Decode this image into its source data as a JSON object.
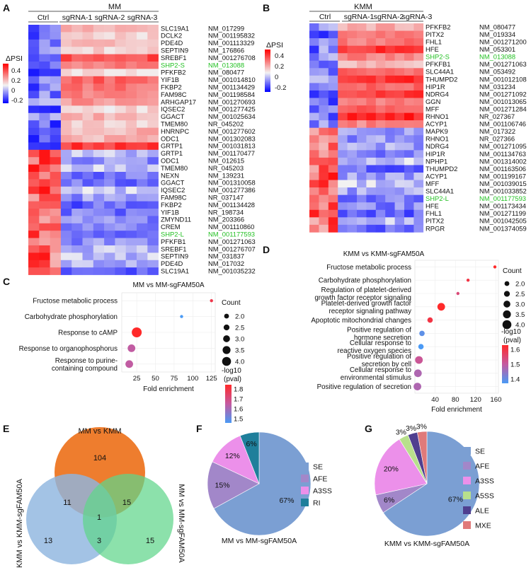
{
  "figure": {
    "panel_letters": [
      "A",
      "B",
      "C",
      "D",
      "E",
      "F",
      "G"
    ],
    "heatmap_scale": {
      "title": "ΔPSI",
      "ticks": [
        "0.4",
        "0.2",
        "0",
        "-0.2"
      ],
      "colors": {
        "low": "#0000ff",
        "mid": "#f2f2f2",
        "high": "#ff0000"
      }
    },
    "heatmap_A": {
      "title": "MM",
      "groups": [
        "Ctrl",
        "sgRNA-1",
        "sgRNA-2",
        "sgRNA-3"
      ],
      "n_cols": 12,
      "genes": [
        "SLC19A1",
        "DCLK2",
        "PDE4D",
        "SEPTIN9",
        "SREBF1",
        "SHP2-S",
        "PFKFB2",
        "YIF1B",
        "FKBP2",
        "FAM98C",
        "ARHGAP17",
        "IQSEC2",
        "GGACT",
        "TMEM80",
        "HNRNPC",
        "ODC1",
        "GRTP1",
        "GRTP1",
        "ODC1",
        "TMEM80",
        "NEXN",
        "GGACT",
        "IQSEC2",
        "FAM98C",
        "FKBP2",
        "YIF1B",
        "ZMYND11",
        "CREM",
        "SHP2-L",
        "PFKFB1",
        "SREBF1",
        "SEPTIN9",
        "PDE4D",
        "SLC19A1"
      ],
      "ids": [
        "NM_017299",
        "NM_001195832",
        "NM_001113329",
        "NM_176866",
        "NM_001276708",
        "NM_013088",
        "NM_080477",
        "NM_001014810",
        "NM_001134429",
        "NM_001198584",
        "NM_001270693",
        "NM_001277425",
        "NM_001025634",
        "NR_045202",
        "NM_001277602",
        "NM_001302083",
        "NM_001031813",
        "NM_001170477",
        "NM_012615",
        "NR_045203",
        "NM_139231",
        "NM_001310058",
        "NM_001277386",
        "NR_037147",
        "NM_001134428",
        "NR_198734",
        "NM_203366",
        "NM_001110860",
        "NM_001177593",
        "NM_001271063",
        "NM_001276707",
        "NM_031837",
        "NM_017032",
        "NM_001035232"
      ],
      "highlight_rows": [
        5,
        28
      ]
    },
    "heatmap_B": {
      "title": "KMM",
      "groups": [
        "Ctrl",
        "sgRNA-1",
        "sgRNA-2",
        "sgRNA-3"
      ],
      "n_cols": 12,
      "genes": [
        "PFKFB2",
        "PITX2",
        "FHL1",
        "HFE",
        "SHP2-S",
        "PFKFB1",
        "SLC44A1",
        "THUMPD2",
        "HIP1R",
        "NDRG4",
        "GGN",
        "MFF",
        "RHNO1",
        "ACYP1",
        "MAPK9",
        "RHNO1",
        "NDRG4",
        "HIP1R",
        "NPHP1",
        "THUMPD2",
        "ACYP1",
        "MFF",
        "SLC44A1",
        "SHP2-L",
        "HFE",
        "FHL1",
        "PITX2",
        "RPGR"
      ],
      "ids": [
        "NM_080477",
        "NM_019334",
        "NM_001271200",
        "NM_053301",
        "NM_013088",
        "NM_001271063",
        "NM_053492",
        "NM_001012108",
        "NM_031234",
        "NM_001271092",
        "NM_001013065",
        "NM_001271284",
        "NR_027367",
        "NM_001106746",
        "NM_017322",
        "NR_027366",
        "NM_001271095",
        "NM_001134763",
        "NM_001314002",
        "NM_001163506",
        "NM_001199167",
        "NM_001039015",
        "NM_001033852",
        "NM_001177593",
        "NM_001173434",
        "NM_001271199",
        "NM_001042505",
        "NM_001374059"
      ],
      "highlight_rows": [
        4,
        23
      ]
    },
    "venn": {
      "sets": [
        "MM vs KMM",
        "KMM vs KMM-sgFAM50A",
        "MM vs MM-sgFAM50A"
      ],
      "colors": {
        "top": "#ee7d2e",
        "left": "#8fb6df",
        "right": "#5fd68b"
      },
      "regions": {
        "top_only": "104",
        "left_only": "13",
        "right_only": "15",
        "top_left": "11",
        "top_right": "15",
        "left_right": "3",
        "all": "1"
      }
    }
  },
  "chart_data": [
    {
      "panel": "C",
      "type": "scatter",
      "title": "MM vs MM-sgFAM50A",
      "xlabel": "Fold enrichment",
      "ylabel": "",
      "xlim": [
        5,
        130
      ],
      "xticks": [
        "25",
        "50",
        "75",
        "100",
        "125"
      ],
      "categories": [
        "Fructose metabolic process",
        "Carbohydrate phosphorylation",
        "Response to cAMP",
        "Response to organophosphorus",
        "Response to purine-containing compound"
      ],
      "fold_enrichment": [
        125,
        85,
        25,
        18,
        15
      ],
      "count": [
        1,
        1,
        4,
        3,
        3
      ],
      "neg_log10_pval": [
        1.75,
        1.45,
        1.8,
        1.62,
        1.62
      ],
      "legend": {
        "size_title": "Count",
        "size_ticks": [
          "2.0",
          "2.5",
          "3.0",
          "3.5",
          "4.0"
        ],
        "color_title": "-log10\n(pval)",
        "color_ticks": [
          "1.8",
          "1.7",
          "1.6",
          "1.5"
        ],
        "color_range": [
          1.45,
          1.8
        ]
      }
    },
    {
      "panel": "D",
      "type": "scatter",
      "title": "KMM vs KMM-sgFAM50A",
      "xlabel": "Fold enrichment",
      "ylabel": "",
      "xlim": [
        0,
        165
      ],
      "xticks": [
        "40",
        "80",
        "120",
        "160"
      ],
      "categories": [
        "Fructose metabolic process",
        "Carbohydrate phosphorylation",
        "Regulation of platelet-derived growth factor receptor signaling",
        "Platelet-derived growth factor receptor signaling pathway",
        "Apoptotic mitochondrial changes",
        "Positive regulation of hormone secretion",
        "Cellular response to reactive oxygen species",
        "Positive regulation of secretion by cell",
        "Cellular response to environmental stimulus",
        "Positive regulation of secretion"
      ],
      "fold_enrichment": [
        158,
        105,
        85,
        52,
        30,
        14,
        12,
        8,
        6,
        5
      ],
      "count": [
        1,
        1,
        1,
        3,
        2,
        2,
        2,
        3,
        3,
        3
      ],
      "neg_log10_pval": [
        1.72,
        1.68,
        1.6,
        1.72,
        1.68,
        1.38,
        1.35,
        1.55,
        1.5,
        1.5
      ],
      "legend": {
        "size_title": "Count",
        "size_ticks": [
          "2.0",
          "2.5",
          "3.0",
          "3.5",
          "4.0"
        ],
        "color_title": "-log10\n(pval)",
        "color_ticks": [
          "1.6",
          "1.5",
          "1.4"
        ],
        "color_range": [
          1.35,
          1.72
        ]
      }
    },
    {
      "panel": "F",
      "type": "pie",
      "title": "MM vs MM-sgFAM50A",
      "categories": [
        "SE",
        "AFE",
        "A3SS",
        "RI"
      ],
      "values": [
        67,
        15,
        12,
        6
      ],
      "labels": [
        "67%",
        "15%",
        "12%",
        "6%"
      ],
      "colors": [
        "#7b9fd3",
        "#a287c9",
        "#ec90ea",
        "#1f7f9b"
      ]
    },
    {
      "panel": "G",
      "type": "pie",
      "title": "KMM vs KMM-sgFAM50A",
      "categories": [
        "SE",
        "AFE",
        "A3SS",
        "A5SS",
        "ALE",
        "MXE"
      ],
      "values": [
        67,
        6,
        20,
        3,
        3,
        3
      ],
      "labels": [
        "67%",
        "6%",
        "20%",
        "3%",
        "3%",
        "3%"
      ],
      "colors": [
        "#7b9fd3",
        "#a287c9",
        "#ec90ea",
        "#b8e08c",
        "#4f3f8f",
        "#e07a7a"
      ]
    }
  ]
}
